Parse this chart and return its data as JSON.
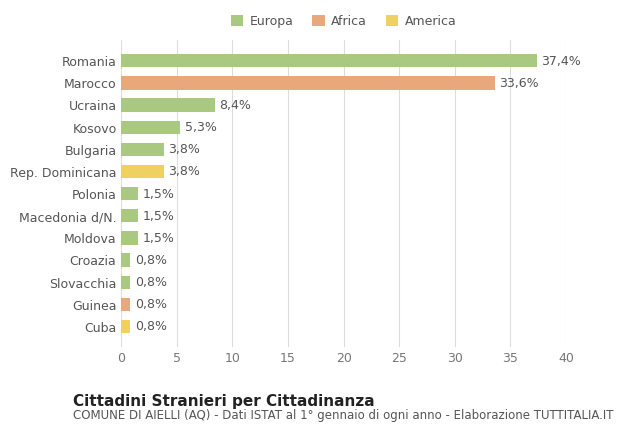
{
  "categories": [
    "Romania",
    "Marocco",
    "Ucraina",
    "Kosovo",
    "Bulgaria",
    "Rep. Dominicana",
    "Polonia",
    "Macedonia d/N.",
    "Moldova",
    "Croazia",
    "Slovacchia",
    "Guinea",
    "Cuba"
  ],
  "values": [
    37.4,
    33.6,
    8.4,
    5.3,
    3.8,
    3.8,
    1.5,
    1.5,
    1.5,
    0.8,
    0.8,
    0.8,
    0.8
  ],
  "continents": [
    "Europa",
    "Africa",
    "Europa",
    "Europa",
    "Europa",
    "America",
    "Europa",
    "Europa",
    "Europa",
    "Europa",
    "Europa",
    "Africa",
    "America"
  ],
  "colors": {
    "Europa": "#a8c97f",
    "Africa": "#e8a87c",
    "America": "#f0d060"
  },
  "legend_order": [
    "Europa",
    "Africa",
    "America"
  ],
  "title": "Cittadini Stranieri per Cittadinanza",
  "subtitle": "COMUNE DI AIELLI (AQ) - Dati ISTAT al 1° gennaio di ogni anno - Elaborazione TUTTITALIA.IT",
  "xlim": [
    0,
    40
  ],
  "xticks": [
    0,
    5,
    10,
    15,
    20,
    25,
    30,
    35,
    40
  ],
  "background_color": "#ffffff",
  "grid_color": "#dddddd",
  "bar_height": 0.6,
  "label_fontsize": 9,
  "tick_fontsize": 9,
  "title_fontsize": 11,
  "subtitle_fontsize": 8.5
}
